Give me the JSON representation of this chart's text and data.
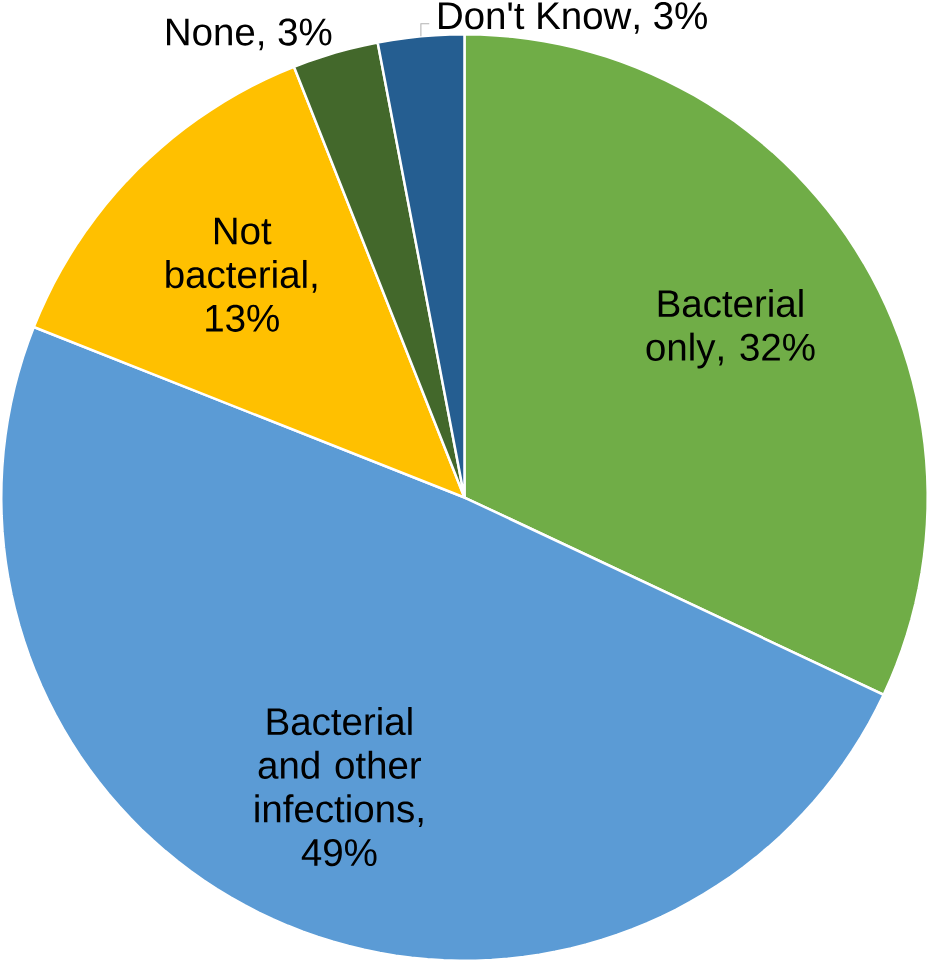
{
  "chart_data": {
    "type": "pie",
    "categories": [
      "Bacterial only",
      "Bacterial and other infections",
      "Not bacterial",
      "None",
      "Don't Know"
    ],
    "values": [
      32,
      49,
      13,
      3,
      3
    ],
    "value_labels": [
      ", 32%",
      ", 49%",
      ", 13%",
      ", 3%",
      ", 3%"
    ],
    "colors": [
      "#70ad47",
      "#5b9bd5",
      "#ffc000",
      "#43682b",
      "#255e91"
    ]
  }
}
